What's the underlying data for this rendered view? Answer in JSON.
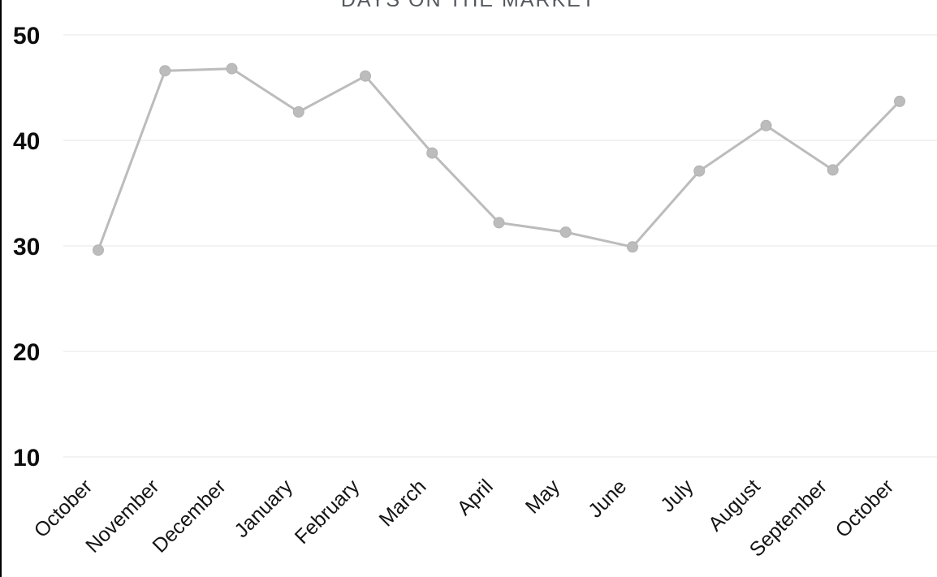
{
  "page": {
    "left_border_color": "#000000",
    "background_color": "#ffffff"
  },
  "chart_data": {
    "type": "line",
    "title": "DAYS ON THE MARKET",
    "categories": [
      "October",
      "November",
      "December",
      "January",
      "February",
      "March",
      "April",
      "May",
      "June",
      "July",
      "August",
      "September",
      "October"
    ],
    "values": [
      29.6,
      46.6,
      46.8,
      42.7,
      46.1,
      38.8,
      32.2,
      31.3,
      29.9,
      37.1,
      41.4,
      37.2,
      43.7
    ],
    "yticks": [
      50,
      40,
      30,
      20,
      10
    ],
    "ylim": [
      10,
      53
    ],
    "xlabel": "",
    "ylabel": "",
    "grid": true,
    "legend_position": "none",
    "x_label_rotation_deg": -45,
    "series_color": "#bcbcbc",
    "marker_edge_color": "#b2b2b2",
    "gridline_color": "#e4e4e4",
    "ytick_color": "#0d0d0d",
    "xtick_color": "#141414",
    "title_color": "#54585e"
  }
}
